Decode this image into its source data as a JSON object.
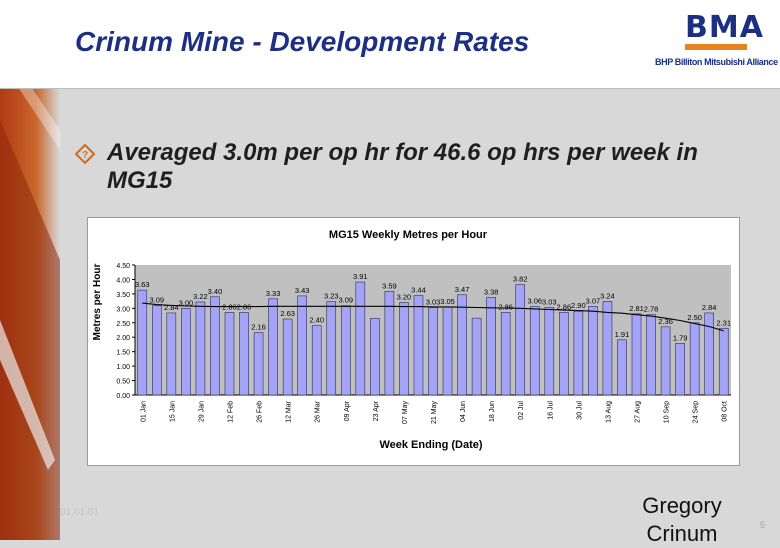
{
  "slide": {
    "title": "Crinum Mine - Development Rates",
    "bullet": "Averaged 3.0m per op hr for 46.6 op hrs per week in MG15",
    "footer_date": "01.01.01",
    "presenter": "Gregory Crinum",
    "page_number": "5"
  },
  "logo": {
    "mark": "BMA",
    "name": "BHP Billiton Mitsubishi Alliance"
  },
  "colors": {
    "title": "#1c2f82",
    "bar_fill": "#a4a4f4",
    "bar_stroke": "#2a2a6a",
    "plot_bg": "#c0c0c0",
    "trend_line": "#000000"
  },
  "chart_data": {
    "type": "bar",
    "title": "MG15 Weekly Metres per Hour",
    "xlabel": "Week Ending (Date)",
    "ylabel": "Metres per Hour",
    "ylim": [
      0,
      4.5
    ],
    "yticks": [
      "0.00",
      "0.50",
      "1.00",
      "1.50",
      "2.00",
      "2.50",
      "3.00",
      "3.50",
      "4.00",
      "4.50"
    ],
    "grid": false,
    "x_tick_labels": [
      "01 Jan",
      "15 Jan",
      "29 Jan",
      "12 Feb",
      "26 Feb",
      "12 Mar",
      "26 Mar",
      "09 Apr",
      "23 Apr",
      "07 May",
      "21 May",
      "04 Jun",
      "18 Jun",
      "02 Jul",
      "16 Jul",
      "30 Jul",
      "13 Aug",
      "27 Aug",
      "10 Sep",
      "24 Sep",
      "08 Oct"
    ],
    "series": [
      {
        "type": "bar",
        "values": [
          3.63,
          3.09,
          2.84,
          3.0,
          3.22,
          3.4,
          2.86,
          2.86,
          2.16,
          3.33,
          2.63,
          3.43,
          2.4,
          3.23,
          3.09,
          3.91,
          2.65,
          3.59,
          3.2,
          3.44,
          3.03,
          3.05,
          3.47,
          2.66,
          3.38,
          2.86,
          3.82,
          3.06,
          3.03,
          2.86,
          2.9,
          3.07,
          3.24,
          1.91,
          2.81,
          2.78,
          2.36,
          1.79,
          2.5,
          2.84,
          2.31
        ],
        "labels": [
          "3.63",
          "3.09",
          "2.84",
          "3.00",
          "3.22",
          "3.40",
          "2.86",
          "2.86",
          "2.16",
          "3.33",
          "2.63",
          "3.43",
          "2.40",
          "3.23",
          "3.09",
          "3.91",
          "",
          "3.59",
          "3.20",
          "3.44",
          "3.03",
          "3.05",
          "3.47",
          "",
          "3.38",
          "2.86",
          "3.82",
          "3.06",
          "3.03",
          "2.86",
          "2.90",
          "3.07",
          "3.24",
          "1.91",
          "2.81",
          "2.78",
          "2.36",
          "1.79",
          "2.50",
          "2.84",
          "2.31"
        ]
      },
      {
        "type": "line",
        "trend": "polynomial",
        "values": [
          3.18,
          3.13,
          3.1,
          3.08,
          3.07,
          3.06,
          3.06,
          3.06,
          3.06,
          3.07,
          3.07,
          3.07,
          3.07,
          3.07,
          3.07,
          3.07,
          3.07,
          3.07,
          3.06,
          3.06,
          3.05,
          3.05,
          3.04,
          3.03,
          3.02,
          3.01,
          3.0,
          2.98,
          2.96,
          2.94,
          2.92,
          2.9,
          2.86,
          2.83,
          2.78,
          2.73,
          2.66,
          2.58,
          2.47,
          2.37,
          2.22
        ]
      }
    ]
  }
}
